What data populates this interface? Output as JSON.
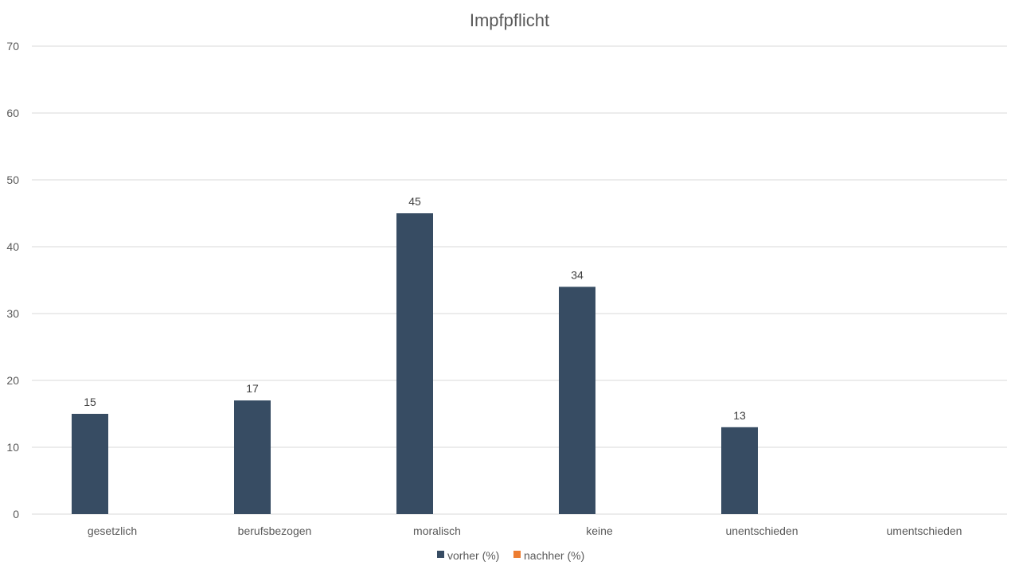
{
  "chart_data": {
    "type": "bar",
    "title": "Impfpflicht",
    "xlabel": "",
    "ylabel": "",
    "categories": [
      "gesetzlich",
      "berufsbezogen",
      "moralisch",
      "keine",
      "unentschieden",
      "umentschieden"
    ],
    "series": [
      {
        "name": "vorher (%)",
        "color": "#374c63",
        "values": [
          15,
          17,
          45,
          34,
          13,
          null
        ],
        "labels": [
          "15",
          "17",
          "45",
          "34",
          "13",
          null
        ]
      },
      {
        "name": "nachher (%)",
        "color": "#ed7d31",
        "values": [
          null,
          null,
          null,
          null,
          null,
          null
        ],
        "labels": [
          null,
          null,
          null,
          null,
          null,
          null
        ]
      }
    ],
    "ylim": [
      0,
      70
    ],
    "yticks": [
      0,
      10,
      20,
      30,
      40,
      50,
      60,
      70
    ],
    "grid": true,
    "legend_position": "bottom"
  }
}
